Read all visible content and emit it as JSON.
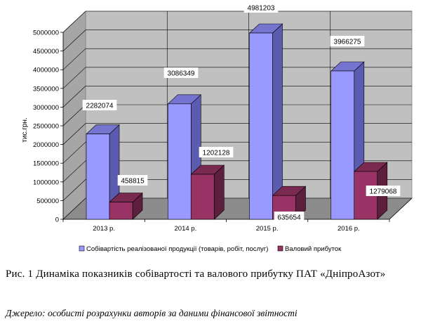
{
  "chart_data": {
    "type": "bar",
    "style": "3d-clustered-column",
    "categories": [
      "2013 р.",
      "2014 р.",
      "2015 р.",
      "2016 р."
    ],
    "series": [
      {
        "name": "Собівартість реалізованої продукції (товарів, робіт, послуг)",
        "values": [
          2282074,
          3086349,
          4981203,
          3966275
        ],
        "labels": [
          "2282074",
          "3086349",
          "4981203",
          "3966275"
        ],
        "color": "#9999ff"
      },
      {
        "name": "Валовий  прибуток",
        "values": [
          458815,
          1202128,
          635654,
          1279068
        ],
        "labels": [
          "458815",
          "1202128",
          "635654",
          "1279068"
        ],
        "color": "#993366"
      }
    ],
    "ylabel": "тис.грн.",
    "ylim": [
      0,
      5000000
    ],
    "yticks": [
      0,
      500000,
      1000000,
      1500000,
      2000000,
      2500000,
      3000000,
      3500000,
      4000000,
      4500000,
      5000000
    ],
    "grid": true,
    "legend_position": "bottom"
  },
  "caption": {
    "prefix": "Рис. 1",
    "text": "Динаміка показників собівартості та валового прибутку ПАТ «ДніпроАзот»"
  },
  "source": "Джерело: особисті розрахунки авторів за даними фінансової звітності"
}
